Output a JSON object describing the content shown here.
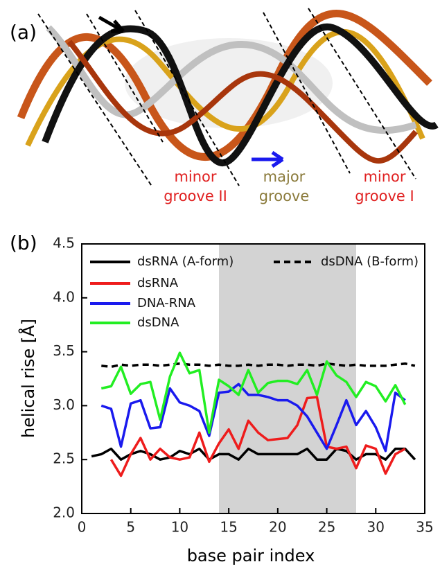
{
  "panel_a": {
    "label": "(a)",
    "annotations": [
      {
        "lines": [
          "minor",
          "groove II"
        ]
      },
      {
        "lines": [
          "major",
          "groove"
        ]
      },
      {
        "lines": [
          "minor",
          "groove I"
        ]
      }
    ]
  },
  "chart_data": {
    "type": "line",
    "panel_label": "(b)",
    "xlabel": "base pair index",
    "ylabel": "helical rise [Å]",
    "xlim": [
      0,
      35
    ],
    "ylim": [
      2.0,
      4.5
    ],
    "xticks": [
      0,
      5,
      10,
      15,
      20,
      25,
      30,
      35
    ],
    "yticks": [
      {
        "value": 2,
        "label": "2.0"
      },
      2.5,
      {
        "value": 3,
        "label": "3.0"
      },
      3.5,
      {
        "value": 4,
        "label": "4.0"
      },
      4.5
    ],
    "shaded_region": [
      14,
      28
    ],
    "series": [
      {
        "name": "dsRNA (A-form)",
        "color": "#000000",
        "dashed": false,
        "x": [
          1,
          2,
          3,
          4,
          5,
          6,
          7,
          8,
          9,
          10,
          11,
          12,
          13,
          14,
          15,
          16,
          17,
          18,
          19,
          20,
          21,
          22,
          23,
          24,
          25,
          26,
          27,
          28,
          29,
          30,
          31,
          32,
          33,
          34
        ],
        "values": [
          2.53,
          2.55,
          2.6,
          2.5,
          2.55,
          2.58,
          2.55,
          2.5,
          2.52,
          2.58,
          2.55,
          2.6,
          2.5,
          2.55,
          2.55,
          2.5,
          2.6,
          2.55,
          2.55,
          2.55,
          2.55,
          2.55,
          2.6,
          2.5,
          2.5,
          2.6,
          2.58,
          2.5,
          2.55,
          2.55,
          2.5,
          2.6,
          2.6,
          2.5
        ]
      },
      {
        "name": "dsDNA (B-form)",
        "color": "#000000",
        "dashed": true,
        "x": [
          2,
          3,
          4,
          5,
          6,
          7,
          8,
          9,
          10,
          11,
          12,
          13,
          14,
          15,
          16,
          17,
          18,
          19,
          20,
          21,
          22,
          23,
          24,
          25,
          26,
          27,
          28,
          29,
          30,
          31,
          32,
          33,
          34
        ],
        "values": [
          3.37,
          3.36,
          3.38,
          3.37,
          3.38,
          3.38,
          3.37,
          3.38,
          3.39,
          3.38,
          3.38,
          3.37,
          3.38,
          3.37,
          3.37,
          3.38,
          3.37,
          3.38,
          3.38,
          3.37,
          3.38,
          3.38,
          3.37,
          3.39,
          3.38,
          3.37,
          3.38,
          3.37,
          3.37,
          3.37,
          3.38,
          3.39,
          3.37
        ]
      },
      {
        "name": "dsRNA",
        "color": "#ee1c1c",
        "dashed": false,
        "x": [
          3,
          4,
          5,
          6,
          7,
          8,
          9,
          10,
          11,
          12,
          13,
          14,
          15,
          16,
          17,
          18,
          19,
          20,
          21,
          22,
          23,
          24,
          25,
          26,
          27,
          28,
          29,
          30,
          31,
          32,
          33
        ],
        "values": [
          2.5,
          2.35,
          2.55,
          2.7,
          2.5,
          2.6,
          2.52,
          2.5,
          2.52,
          2.75,
          2.48,
          2.65,
          2.78,
          2.6,
          2.86,
          2.75,
          2.68,
          2.69,
          2.7,
          2.82,
          3.07,
          3.08,
          2.62,
          2.6,
          2.62,
          2.42,
          2.63,
          2.6,
          2.37,
          2.55,
          2.6
        ]
      },
      {
        "name": "DNA-RNA",
        "color": "#1a1aee",
        "dashed": false,
        "x": [
          2,
          3,
          4,
          5,
          6,
          7,
          8,
          9,
          10,
          11,
          12,
          13,
          14,
          15,
          16,
          17,
          18,
          19,
          20,
          21,
          22,
          23,
          24,
          25,
          26,
          27,
          28,
          29,
          30,
          31,
          32,
          33
        ],
        "values": [
          3.0,
          2.97,
          2.62,
          3.02,
          3.05,
          2.79,
          2.8,
          3.16,
          3.03,
          3.0,
          2.95,
          2.72,
          3.12,
          3.13,
          3.2,
          3.1,
          3.1,
          3.08,
          3.05,
          3.05,
          3.0,
          2.9,
          2.75,
          2.6,
          2.82,
          3.05,
          2.82,
          2.95,
          2.8,
          2.58,
          3.12,
          3.05
        ]
      },
      {
        "name": "dsDNA",
        "color": "#22ee22",
        "dashed": false,
        "x": [
          2,
          3,
          4,
          5,
          6,
          7,
          8,
          9,
          10,
          11,
          12,
          13,
          14,
          15,
          16,
          17,
          18,
          19,
          20,
          21,
          22,
          23,
          24,
          25,
          26,
          27,
          28,
          29,
          30,
          31,
          32,
          33
        ],
        "values": [
          3.16,
          3.18,
          3.36,
          3.11,
          3.2,
          3.22,
          2.87,
          3.27,
          3.49,
          3.3,
          3.33,
          2.75,
          3.24,
          3.18,
          3.1,
          3.33,
          3.12,
          3.21,
          3.23,
          3.23,
          3.2,
          3.33,
          3.1,
          3.41,
          3.28,
          3.22,
          3.08,
          3.22,
          3.18,
          3.04,
          3.19,
          3.01
        ]
      }
    ]
  }
}
